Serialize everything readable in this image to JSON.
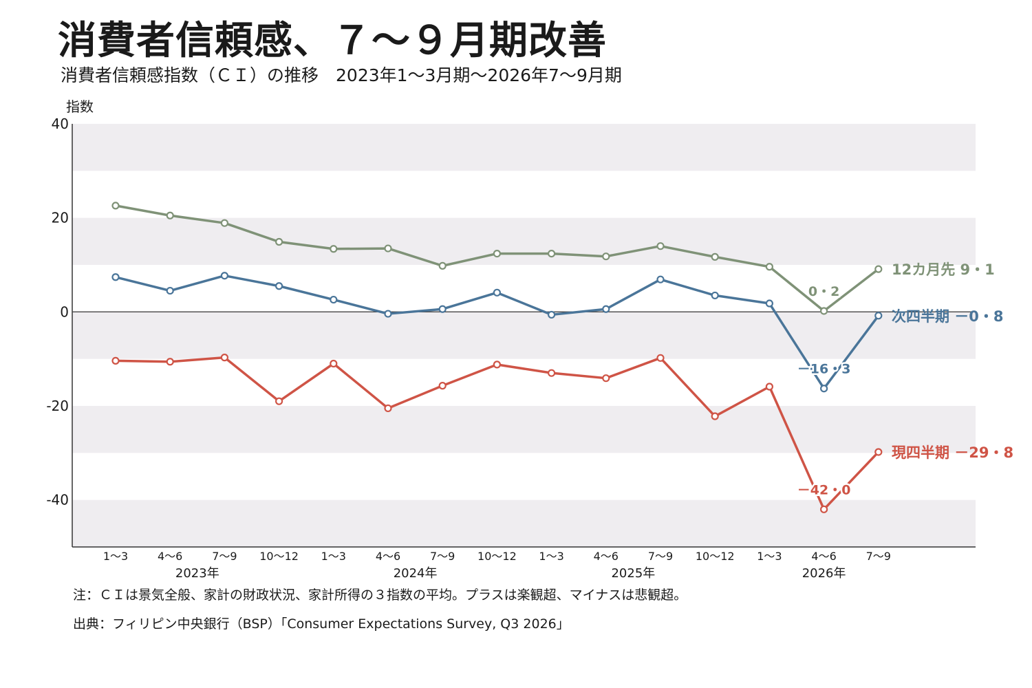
{
  "header": {
    "title": "消費者信頼感、７～９月期改善",
    "subtitle": "消費者信頼感指数（ＣＩ）の推移　2023年1～3月期～2026年7～9月期"
  },
  "footer": {
    "note": "注：ＣＩは景気全般、家計の財政状況、家計所得の３指数の平均。プラスは楽観超、マイナスは悲観超。",
    "source": "出典：フィリピン中央銀行（BSP）「Consumer Expectations Survey, Q3 2026」"
  },
  "chart_data": {
    "type": "line",
    "ylabel": "指数",
    "ylim": [
      -50,
      40
    ],
    "yticks": [
      40,
      20,
      0,
      -20,
      -40
    ],
    "grid": "alternating horizontal bands every 10",
    "categories": [
      "1～3",
      "4～6",
      "7～9",
      "10～12",
      "1～3",
      "4～6",
      "7～9",
      "10～12",
      "1～3",
      "4～6",
      "7～9",
      "10～12",
      "1～3",
      "4～6",
      "7～9"
    ],
    "years": [
      {
        "label": "2023年",
        "index": 1.5
      },
      {
        "label": "2024年",
        "index": 5.5
      },
      {
        "label": "2025年",
        "index": 9.5
      },
      {
        "label": "2026年",
        "index": 13
      }
    ],
    "series": [
      {
        "name": "12カ月先",
        "color": "#7f9277",
        "values": [
          22.6,
          20.5,
          18.9,
          14.9,
          13.4,
          13.5,
          9.8,
          12.4,
          12.4,
          11.8,
          14.0,
          11.7,
          9.6,
          0.2,
          9.1
        ],
        "end_label": "12カ月先 9・1",
        "annotation": "0・2",
        "annotation_index": 13
      },
      {
        "name": "次四半期",
        "color": "#4a7599",
        "values": [
          7.4,
          4.5,
          7.7,
          5.5,
          2.6,
          -0.4,
          0.6,
          4.1,
          -0.6,
          0.6,
          6.9,
          3.5,
          1.8,
          -16.3,
          -0.8
        ],
        "end_label": "次四半期 －0・8",
        "annotation": "－16・3",
        "annotation_index": 13
      },
      {
        "name": "現四半期",
        "color": "#cf5446",
        "values": [
          -10.4,
          -10.6,
          -9.7,
          -19.0,
          -11.0,
          -20.5,
          -15.7,
          -11.2,
          -13.0,
          -14.1,
          -9.8,
          -22.2,
          -15.9,
          -42.0,
          -29.8
        ],
        "end_label": "現四半期 －29・8",
        "annotation": "－42・0",
        "annotation_index": 13
      }
    ]
  }
}
